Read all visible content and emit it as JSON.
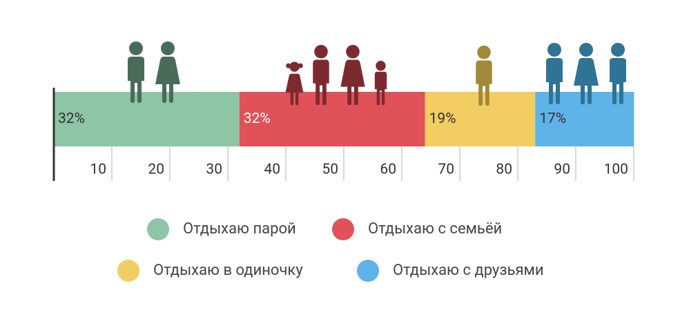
{
  "chart_data": {
    "type": "stacked_bar",
    "series": [
      {
        "name": "Отдыхаю парой",
        "color": "#8dc5a5",
        "values": [
          32
        ],
        "value_labels": [
          "32%"
        ]
      },
      {
        "name": "Отдыхаю с семьёй",
        "color": "#e05257",
        "values": [
          32
        ],
        "value_labels": [
          "32%"
        ]
      },
      {
        "name": "Отдыхаю в одиночку",
        "color": "#f2cd61",
        "values": [
          19
        ],
        "value_labels": [
          "19%"
        ]
      },
      {
        "name": "Отдыхаю с друзьями",
        "color": "#5eb3e8",
        "values": [
          17
        ],
        "value_labels": [
          "17%"
        ]
      }
    ],
    "xlim": [
      0,
      100
    ],
    "xticks": [
      10,
      20,
      30,
      40,
      50,
      60,
      70,
      80,
      90,
      100
    ],
    "grid": true
  }
}
